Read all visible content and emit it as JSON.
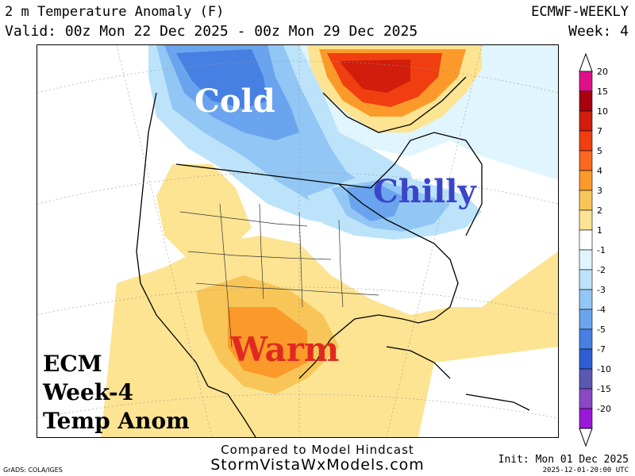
{
  "header": {
    "title": "2 m Temperature Anomaly (F)",
    "valid": "Valid: 00z Mon 22 Dec 2025 - 00z Mon 29 Dec 2025",
    "model": "ECMWF-WEEKLY",
    "week": "Week: 4"
  },
  "annotations": {
    "cold": "Cold",
    "chilly": "Chilly",
    "warm": "Warm"
  },
  "badge": {
    "line1": "ECM",
    "line2": "Week-4",
    "line3": "Temp Anom"
  },
  "footer": {
    "compared": "Compared to Model Hindcast",
    "site": "StormVistaWxModels.com",
    "grads": "GrADS: COLA/IGES",
    "init": "Init: Mon 01 Dec 2025",
    "timestamp": "2025-12-01-20:00 UTC"
  },
  "colorbar": {
    "levels": [
      "20",
      "15",
      "10",
      "7",
      "5",
      "4",
      "3",
      "2",
      "1",
      "-1",
      "-2",
      "-3",
      "-4",
      "-5",
      "-7",
      "-10",
      "-15",
      "-20"
    ],
    "colors": [
      "#e0108a",
      "#a80010",
      "#d21c0c",
      "#f03e10",
      "#fb6820",
      "#fb9a2a",
      "#f8c658",
      "#fde492",
      "#ffffff",
      "#e0f5fd",
      "#bce3fa",
      "#92c6f4",
      "#6aa4ee",
      "#4780e3",
      "#2d5fd2",
      "#5a58b2",
      "#8a48c4",
      "#9a18d8"
    ]
  },
  "colors": {
    "cold_core": "#4780e3",
    "warm_core": "#f8c658",
    "hot_core": "#d21c0c"
  }
}
